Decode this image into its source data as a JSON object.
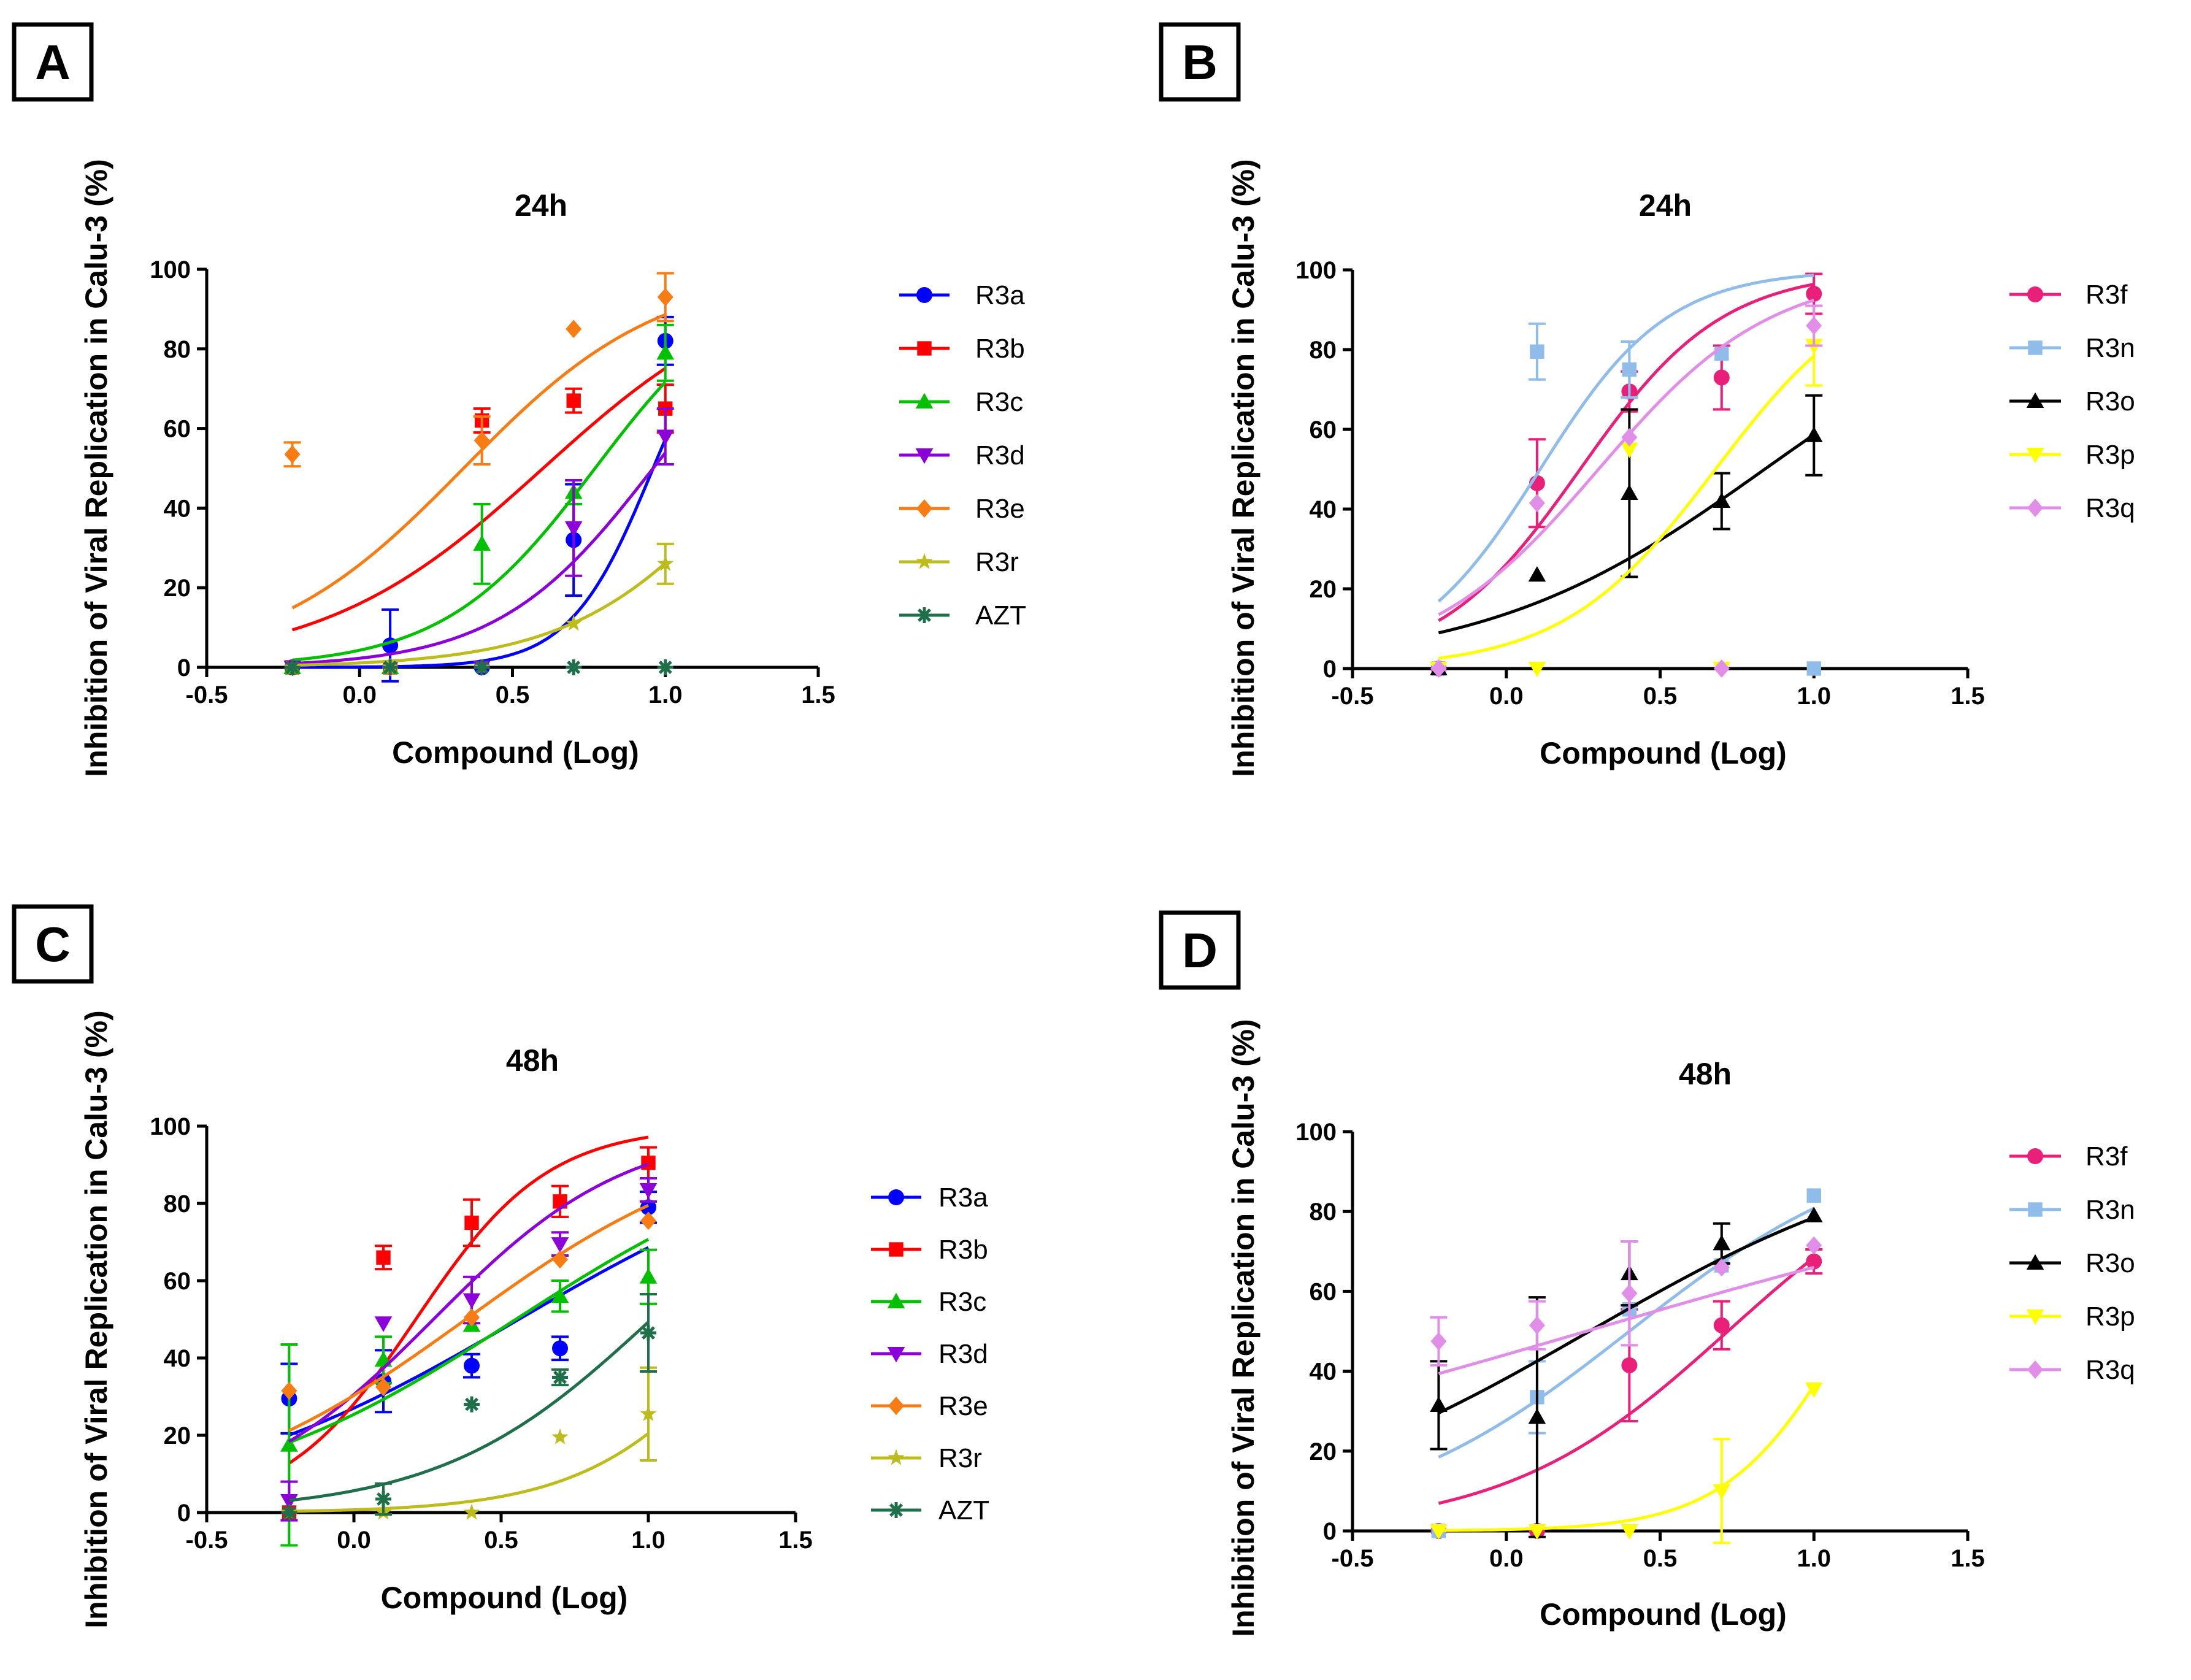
{
  "chart_data": [
    {
      "panel": "A",
      "type": "scatter",
      "title": "24h",
      "xlabel": "Compound (Log)",
      "ylabel": "Inhibition of Viral Replication in Calu-3 (%)",
      "xlim": [
        -0.5,
        1.5
      ],
      "ylim": [
        0,
        100
      ],
      "xticks": [
        -0.5,
        0.0,
        0.5,
        1.0,
        1.5
      ],
      "xtick_labels": [
        "-0.5",
        "0.0",
        "0.5",
        "1.0",
        "1.5"
      ],
      "yticks": [
        0,
        20,
        40,
        60,
        80,
        100
      ],
      "ytick_labels": [
        "0",
        "20",
        "40",
        "60",
        "80",
        "100"
      ],
      "legend_position": "right",
      "x": [
        -0.22,
        0.1,
        0.4,
        0.7,
        1.0
      ],
      "series": [
        {
          "name": "R3a",
          "color": "#0000ff",
          "marker": "circle",
          "values": [
            0,
            5.5,
            0,
            32,
            82
          ],
          "errors": [
            0,
            9,
            0,
            14,
            6
          ],
          "curve": {
            "bottom": 0,
            "top": 100,
            "ec50": 0.96,
            "hill": 3.2
          }
        },
        {
          "name": "R3b",
          "color": "#ff0000",
          "marker": "square",
          "values": [
            0,
            0,
            62,
            67,
            65
          ],
          "errors": [
            0,
            0,
            3,
            3,
            6
          ],
          "curve": {
            "bottom": 0,
            "top": 100,
            "ec50": 0.6,
            "hill": 1.2
          }
        },
        {
          "name": "R3c",
          "color": "#00c000",
          "marker": "triangle-up",
          "values": [
            0,
            0,
            31,
            44,
            79
          ],
          "errors": [
            0,
            0,
            10,
            3,
            7
          ],
          "curve": {
            "bottom": 0,
            "top": 100,
            "ec50": 0.77,
            "hill": 1.75
          }
        },
        {
          "name": "R3d",
          "color": "#8b00d8",
          "marker": "triangle-down",
          "values": [
            0,
            0,
            0,
            35,
            58
          ],
          "errors": [
            0,
            0,
            0,
            12,
            7
          ],
          "curve": {
            "bottom": 0,
            "top": 100,
            "ec50": 0.96,
            "hill": 1.7
          }
        },
        {
          "name": "R3e",
          "color": "#f77c13",
          "marker": "diamond",
          "values": [
            53.5,
            0,
            57,
            85,
            93
          ],
          "errors": [
            3,
            0,
            6,
            0,
            6
          ],
          "curve": {
            "bottom": 0,
            "top": 100,
            "ec50": 0.34,
            "hill": 1.35
          }
        },
        {
          "name": "R3r",
          "color": "#bcbc1c",
          "marker": "star",
          "values": [
            0,
            0,
            0,
            11,
            26
          ],
          "errors": [
            0,
            0,
            0,
            0,
            5
          ],
          "curve": {
            "bottom": 0,
            "top": 100,
            "ec50": 1.3,
            "hill": 1.5
          }
        },
        {
          "name": "AZT",
          "color": "#1f6f4a",
          "marker": "asterisk",
          "values": [
            0,
            0,
            0,
            0,
            0
          ],
          "errors": [
            0,
            0,
            0,
            0,
            0
          ],
          "curve": null
        }
      ]
    },
    {
      "panel": "B",
      "type": "scatter",
      "title": "24h",
      "xlabel": "Compound (Log)",
      "ylabel": "Inhibition of Viral Replication in Calu-3 (%)",
      "xlim": [
        -0.5,
        1.5
      ],
      "ylim": [
        0,
        100
      ],
      "xticks": [
        -0.5,
        0.0,
        0.5,
        1.0,
        1.5
      ],
      "xtick_labels": [
        "-0.5",
        "0.0",
        "0.5",
        "1.0",
        "1.5"
      ],
      "yticks": [
        0,
        20,
        40,
        60,
        80,
        100
      ],
      "ytick_labels": [
        "0",
        "20",
        "40",
        "60",
        "80",
        "100"
      ],
      "legend_position": "right",
      "x": [
        -0.22,
        0.1,
        0.4,
        0.7,
        1.0
      ],
      "series": [
        {
          "name": "R3f",
          "color": "#e8207a",
          "marker": "circle",
          "values": [
            0,
            46.5,
            69.5,
            73,
            94
          ],
          "errors": [
            0,
            11,
            5,
            8,
            5
          ],
          "curve": {
            "bottom": 0,
            "top": 100,
            "ec50": 0.24,
            "hill": 1.88
          }
        },
        {
          "name": "R3n",
          "color": "#8fbce8",
          "marker": "square",
          "values": [
            0,
            79.5,
            75,
            79,
            0
          ],
          "errors": [
            0,
            7,
            7,
            0,
            0
          ],
          "curve": {
            "bottom": 0,
            "top": 100,
            "ec50": 0.11,
            "hill": 2.1
          }
        },
        {
          "name": "R3o",
          "color": "#000000",
          "marker": "triangle-up",
          "values": [
            0,
            23.5,
            44,
            42,
            58.5
          ],
          "errors": [
            0,
            0,
            21,
            7,
            10
          ],
          "curve": {
            "bottom": 0,
            "top": 100,
            "ec50": 0.84,
            "hill": 0.95
          }
        },
        {
          "name": "R3p",
          "color": "#ffff00",
          "marker": "triangle-down",
          "values": [
            0,
            0,
            55,
            0,
            81
          ],
          "errors": [
            0,
            0,
            0,
            0,
            10
          ],
          "curve": {
            "bottom": 0,
            "top": 100,
            "ec50": 0.68,
            "hill": 1.75
          }
        },
        {
          "name": "R3q",
          "color": "#e08ee8",
          "marker": "diamond",
          "values": [
            0,
            41.5,
            58,
            0,
            86
          ],
          "errors": [
            0,
            0,
            0,
            0,
            5
          ],
          "curve": {
            "bottom": 0,
            "top": 100,
            "ec50": 0.3,
            "hill": 1.55
          }
        }
      ]
    },
    {
      "panel": "C",
      "type": "scatter",
      "title": "48h",
      "xlabel": "Compound (Log)",
      "ylabel": "Inhibition of Viral Replication in Calu-3 (%)",
      "xlim": [
        -0.5,
        1.5
      ],
      "ylim": [
        0,
        100
      ],
      "xticks": [
        -0.5,
        0.0,
        0.5,
        1.0,
        1.5
      ],
      "xtick_labels": [
        "-0.5",
        "0.0",
        "0.5",
        "1.0",
        "1.5"
      ],
      "yticks": [
        0,
        20,
        40,
        60,
        80,
        100
      ],
      "ytick_labels": [
        "0",
        "20",
        "40",
        "60",
        "80",
        "100"
      ],
      "legend_position": "right",
      "x": [
        -0.22,
        0.1,
        0.4,
        0.7,
        1.0
      ],
      "series": [
        {
          "name": "R3a",
          "color": "#0000ff",
          "marker": "circle",
          "values": [
            29.5,
            34,
            38,
            42.5,
            79
          ],
          "errors": [
            9,
            8,
            3,
            3,
            4
          ],
          "curve": {
            "bottom": 0,
            "top": 100,
            "ec50": 0.56,
            "hill": 0.77
          }
        },
        {
          "name": "R3b",
          "color": "#ff0000",
          "marker": "square",
          "values": [
            0,
            66,
            75,
            80.5,
            90.5
          ],
          "errors": [
            0,
            3,
            6,
            4,
            4
          ],
          "curve": {
            "bottom": 0,
            "top": 100,
            "ec50": 0.21,
            "hill": 1.94
          }
        },
        {
          "name": "R3c",
          "color": "#00c000",
          "marker": "triangle-up",
          "values": [
            17.5,
            39.5,
            48.5,
            56,
            61
          ],
          "errors": [
            26,
            6,
            0,
            4,
            7
          ],
          "curve": {
            "bottom": 0,
            "top": 100,
            "ec50": 0.55,
            "hill": 0.85
          }
        },
        {
          "name": "R3d",
          "color": "#8b00d8",
          "marker": "triangle-down",
          "values": [
            3,
            49,
            55,
            69.5,
            83.5
          ],
          "errors": [
            5,
            0,
            6,
            3,
            3
          ],
          "curve": {
            "bottom": 0,
            "top": 100,
            "ec50": 0.27,
            "hill": 1.32
          }
        },
        {
          "name": "R3e",
          "color": "#f77c13",
          "marker": "diamond",
          "values": [
            31.5,
            32.5,
            50.5,
            65.5,
            75.5
          ],
          "errors": [
            0,
            0,
            0,
            0,
            0
          ],
          "curve": {
            "bottom": 0,
            "top": 100,
            "ec50": 0.38,
            "hill": 0.95
          }
        },
        {
          "name": "R3r",
          "color": "#bcbc1c",
          "marker": "star",
          "values": [
            0,
            0,
            0,
            19.5,
            25.5
          ],
          "errors": [
            0,
            0,
            0,
            0,
            12
          ],
          "curve": {
            "bottom": 0,
            "top": 100,
            "ec50": 1.38,
            "hill": 1.55
          }
        },
        {
          "name": "AZT",
          "color": "#1f6f4a",
          "marker": "asterisk",
          "values": [
            0,
            3.5,
            28,
            35,
            46.5
          ],
          "errors": [
            0,
            4,
            0,
            2,
            10
          ],
          "curve": {
            "bottom": 0,
            "top": 100,
            "ec50": 1.01,
            "hill": 1.21
          }
        }
      ]
    },
    {
      "panel": "D",
      "type": "scatter",
      "title": "48h",
      "xlabel": "Compound (Log)",
      "ylabel": "Inhibition of Viral Replication in Calu-3 (%)",
      "xlim": [
        -0.5,
        1.5
      ],
      "ylim": [
        0,
        100
      ],
      "xticks": [
        -0.5,
        0.0,
        0.5,
        1.0,
        1.5
      ],
      "xtick_labels": [
        "-0.5",
        "0.0",
        "0.5",
        "1.0",
        "1.5"
      ],
      "yticks": [
        0,
        20,
        40,
        60,
        80,
        100
      ],
      "ytick_labels": [
        "0",
        "20",
        "40",
        "60",
        "80",
        "100"
      ],
      "legend_position": "right",
      "x": [
        -0.22,
        0.1,
        0.4,
        0.7,
        1.0
      ],
      "series": [
        {
          "name": "R3f",
          "color": "#e8207a",
          "marker": "circle",
          "values": [
            0,
            0,
            41.5,
            51.5,
            67.5
          ],
          "errors": [
            0,
            0,
            14,
            6,
            3
          ],
          "curve": {
            "bottom": 0,
            "top": 100,
            "ec50": 0.72,
            "hill": 1.2
          }
        },
        {
          "name": "R3n",
          "color": "#8fbce8",
          "marker": "square",
          "values": [
            0,
            33.5,
            55.5,
            66.5,
            84
          ],
          "errors": [
            0,
            9,
            0,
            0,
            0
          ],
          "curve": {
            "bottom": 0,
            "top": 100,
            "ec50": 0.4,
            "hill": 1.04
          }
        },
        {
          "name": "R3o",
          "color": "#000000",
          "marker": "triangle-up",
          "values": [
            31.5,
            28.5,
            64.5,
            72,
            79
          ],
          "errors": [
            11,
            30,
            8,
            5,
            0
          ],
          "curve": {
            "bottom": 0,
            "top": 100,
            "ec50": 0.27,
            "hill": 0.77
          }
        },
        {
          "name": "R3p",
          "color": "#ffff00",
          "marker": "triangle-down",
          "values": [
            0,
            0,
            0,
            10,
            35.5
          ],
          "errors": [
            0,
            0,
            0,
            13,
            0
          ],
          "curve": {
            "bottom": 0,
            "top": 100,
            "ec50": 1.11,
            "hill": 2.2
          }
        },
        {
          "name": "R3q",
          "color": "#e08ee8",
          "marker": "diamond",
          "values": [
            47.5,
            51.5,
            59.5,
            66,
            71.5
          ],
          "errors": [
            6,
            6,
            13,
            0,
            0
          ],
          "curve": {
            "bottom": 0,
            "top": 100,
            "ec50": 0.26,
            "hill": 0.39
          }
        }
      ]
    }
  ]
}
